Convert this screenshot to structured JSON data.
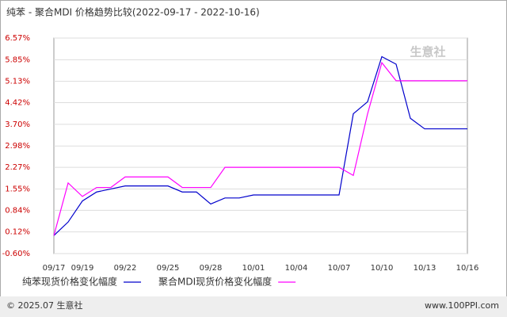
{
  "chart_data": {
    "type": "line",
    "title": "纯苯 - 聚合MDI 价格趋势比较(2022-09-17 - 2022-10-16)",
    "watermark": "生意社",
    "categories": [
      "09/17",
      null,
      "09/19",
      null,
      null,
      "09/22",
      null,
      null,
      "09/25",
      null,
      null,
      "09/28",
      null,
      null,
      "10/01",
      null,
      null,
      "10/04",
      null,
      null,
      "10/07",
      null,
      null,
      "10/10",
      null,
      null,
      "10/13",
      null,
      null,
      "10/16"
    ],
    "series": [
      {
        "name": "纯苯现货价格变化幅度",
        "color": "#0000cc",
        "values": [
          0,
          0.45,
          1.15,
          1.45,
          1.55,
          1.65,
          1.65,
          1.65,
          1.65,
          1.45,
          1.45,
          1.05,
          1.25,
          1.25,
          1.35,
          1.35,
          1.35,
          1.35,
          1.35,
          1.35,
          1.35,
          4.05,
          4.45,
          5.95,
          5.7,
          3.9,
          3.55,
          3.55,
          3.55,
          3.55
        ]
      },
      {
        "name": "聚合MDI现货价格变化幅度",
        "color": "#ff00ff",
        "values": [
          0,
          1.75,
          1.3,
          1.6,
          1.6,
          1.95,
          1.95,
          1.95,
          1.95,
          1.6,
          1.6,
          1.6,
          2.27,
          2.27,
          2.27,
          2.27,
          2.27,
          2.27,
          2.27,
          2.27,
          2.27,
          2.0,
          4.05,
          5.75,
          5.15,
          5.15,
          5.15,
          5.15,
          5.15,
          5.15
        ]
      }
    ],
    "ylim": [
      -0.6,
      6.57
    ],
    "yticks": [
      {
        "value": -0.6,
        "label": "-0.60%"
      },
      {
        "value": 0.12,
        "label": "0.12%"
      },
      {
        "value": 0.84,
        "label": "0.84%"
      },
      {
        "value": 1.55,
        "label": "1.55%"
      },
      {
        "value": 2.27,
        "label": "2.27%"
      },
      {
        "value": 2.98,
        "label": "2.98%"
      },
      {
        "value": 3.7,
        "label": "3.70%"
      },
      {
        "value": 4.42,
        "label": "4.42%"
      },
      {
        "value": 5.13,
        "label": "5.13%"
      },
      {
        "value": 5.85,
        "label": "5.85%"
      },
      {
        "value": 6.57,
        "label": "6.57%"
      }
    ],
    "grid": true,
    "footer_left": "© 2025.07 生意社",
    "footer_right": "www.100PPI.com"
  }
}
